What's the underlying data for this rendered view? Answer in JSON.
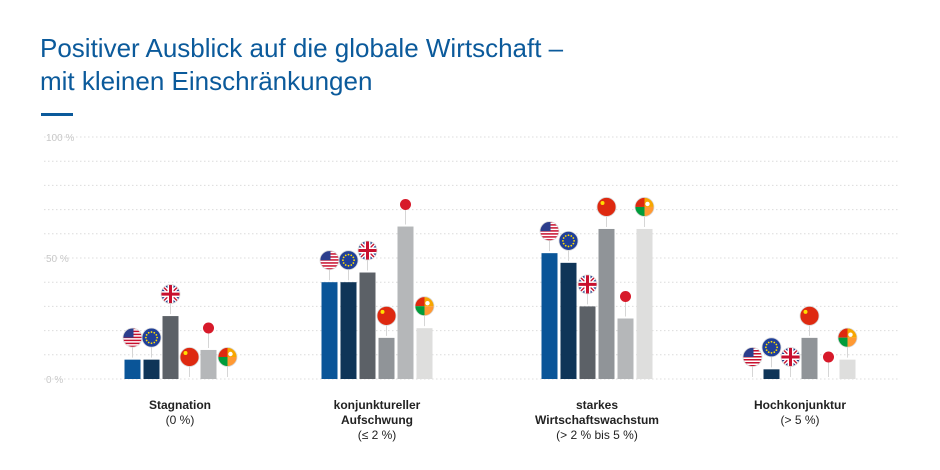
{
  "title_line1": "Positiver Ausblick auf die globale Wirtschaft –",
  "title_line2": "mit kleinen Einschränkungen",
  "colors": {
    "accent": "#0b5a9b",
    "series": [
      "#0a5598",
      "#0f3558",
      "#5c6167",
      "#909498",
      "#b5b7b9",
      "#dededd"
    ],
    "grid": "#dcdcdc",
    "tick": "#c8c8c8"
  },
  "chart_data": {
    "type": "bar",
    "title": "Positiver Ausblick auf die globale Wirtschaft – mit kleinen Einschränkungen",
    "xlabel": "",
    "ylabel": "",
    "ylim": [
      0,
      100
    ],
    "grid": true,
    "yticks": [
      {
        "value": 0,
        "label": "0 %"
      },
      {
        "value": 50,
        "label": "50 %"
      },
      {
        "value": 100,
        "label": "100 %"
      }
    ],
    "categories": [
      {
        "name": "Stagnation",
        "range": "(0 %)"
      },
      {
        "name_lines": [
          "konjunktureller",
          "Aufschwung"
        ],
        "range": "(≤ 2 %)"
      },
      {
        "name_lines": [
          "starkes",
          "Wirtschaftswachstum"
        ],
        "range": "(> 2 % bis 5 %)"
      },
      {
        "name": "Hochkonjunktur",
        "range": "(> 5 %)"
      }
    ],
    "series": [
      {
        "name": "USA",
        "icon": "us-flag-icon",
        "values": [
          8,
          40,
          52,
          0
        ]
      },
      {
        "name": "Europa",
        "icon": "eu-flag-icon",
        "values": [
          8,
          40,
          48,
          4
        ]
      },
      {
        "name": "Großbritannien",
        "icon": "uk-flag-icon",
        "values": [
          26,
          44,
          30,
          0
        ]
      },
      {
        "name": "China",
        "icon": "china-flag-icon",
        "values": [
          0,
          17,
          62,
          17
        ]
      },
      {
        "name": "Japan",
        "icon": "japan-flag-icon",
        "values": [
          12,
          63,
          25,
          0
        ]
      },
      {
        "name": "Emerging Markets",
        "icon": "emerging-markets-icon",
        "values": [
          0,
          21,
          62,
          8
        ]
      }
    ]
  }
}
